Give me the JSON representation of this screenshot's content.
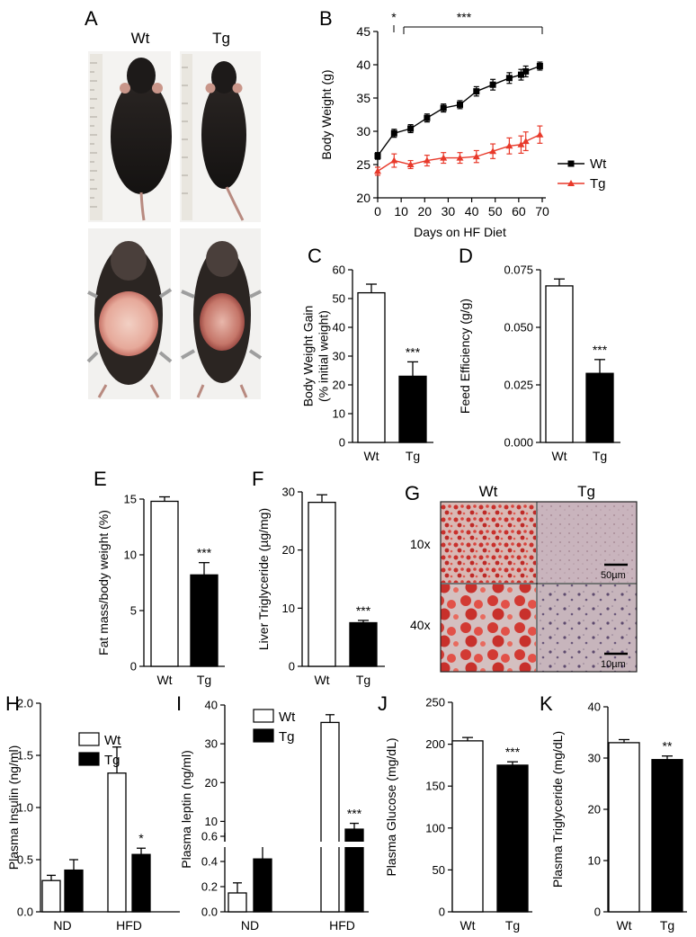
{
  "panel_letters": [
    "A",
    "B",
    "C",
    "D",
    "E",
    "F",
    "G",
    "H",
    "I",
    "J",
    "K"
  ],
  "panel_a": {
    "col_labels": [
      "Wt",
      "Tg"
    ]
  },
  "panel_g": {
    "col_labels": [
      "Wt",
      "Tg"
    ],
    "row_labels": [
      "10x",
      "40x"
    ],
    "scale_bars": [
      "50µm",
      "10µm"
    ]
  },
  "colors": {
    "wt": "#000000",
    "tg": "#e8392a",
    "bar_tg": "#000000",
    "bar_wt": "#ffffff"
  },
  "chart_data": [
    {
      "id": "B",
      "type": "line",
      "xlabel": "Days on HF Diet",
      "ylabel": "Body Weight (g)",
      "xlim": [
        0,
        70
      ],
      "ylim": [
        20,
        45
      ],
      "xticks": [
        0,
        10,
        20,
        30,
        40,
        50,
        60,
        70
      ],
      "yticks": [
        20,
        25,
        30,
        35,
        40,
        45
      ],
      "legend_position": "right",
      "series": [
        {
          "name": "Wt",
          "marker": "square",
          "color": "#000000",
          "x": [
            0,
            7,
            14,
            21,
            28,
            35,
            42,
            49,
            56,
            61,
            63,
            69
          ],
          "y": [
            26.3,
            29.7,
            30.4,
            32.0,
            33.5,
            34.0,
            36.0,
            37.0,
            38.0,
            38.5,
            39.0,
            39.8
          ],
          "err": [
            0.5,
            0.6,
            0.6,
            0.6,
            0.6,
            0.6,
            0.7,
            0.8,
            0.8,
            0.8,
            0.8,
            0.6
          ]
        },
        {
          "name": "Tg",
          "marker": "triangle",
          "color": "#e8392a",
          "x": [
            0,
            7,
            14,
            21,
            28,
            35,
            42,
            49,
            56,
            61,
            63,
            69
          ],
          "y": [
            24.0,
            25.6,
            25.0,
            25.6,
            26.0,
            26.0,
            26.2,
            27.0,
            27.8,
            28.0,
            28.5,
            29.5
          ],
          "err": [
            0.6,
            1.0,
            0.6,
            0.8,
            0.8,
            0.8,
            0.9,
            1.1,
            1.2,
            1.3,
            1.4,
            1.3
          ]
        }
      ],
      "annotations": [
        "*",
        "***"
      ]
    },
    {
      "id": "C",
      "type": "bar",
      "categories": [
        "Wt",
        "Tg"
      ],
      "values": [
        52,
        23
      ],
      "errors": [
        3,
        5
      ],
      "ylabel": [
        "Body Weight Gain",
        "(% initial weight)"
      ],
      "ylim": [
        0,
        60
      ],
      "yticks": [
        "0",
        "10",
        "20",
        "30",
        "40",
        "50",
        "60"
      ],
      "annotations": [
        "",
        "***"
      ]
    },
    {
      "id": "D",
      "type": "bar",
      "categories": [
        "Wt",
        "Tg"
      ],
      "values": [
        0.068,
        0.03
      ],
      "errors": [
        0.003,
        0.006
      ],
      "ylabel": [
        "Feed Efficiency (g/g)"
      ],
      "ylim": [
        0,
        0.075
      ],
      "yticks": [
        "0.000",
        "0.025",
        "0.050",
        "0.075"
      ],
      "annotations": [
        "",
        "***"
      ]
    },
    {
      "id": "E",
      "type": "bar",
      "categories": [
        "Wt",
        "Tg"
      ],
      "values": [
        14.8,
        8.2
      ],
      "errors": [
        0.4,
        1.1
      ],
      "ylabel": [
        "Fat mass/body weight (%)"
      ],
      "ylim": [
        0,
        15
      ],
      "yticks": [
        "0",
        "5",
        "10",
        "15"
      ],
      "annotations": [
        "",
        "***"
      ]
    },
    {
      "id": "F",
      "type": "bar",
      "categories": [
        "Wt",
        "Tg"
      ],
      "values": [
        28.2,
        7.5
      ],
      "errors": [
        1.3,
        0.4
      ],
      "ylabel": [
        "Liver Triglyceride (µg/mg)"
      ],
      "ylim": [
        0,
        30
      ],
      "yticks": [
        "0",
        "10",
        "20",
        "30"
      ],
      "annotations": [
        "",
        "***"
      ]
    },
    {
      "id": "H",
      "type": "bar",
      "categories": [
        "ND",
        "HFD"
      ],
      "series": [
        {
          "name": "Wt",
          "values": [
            0.3,
            1.33
          ],
          "errors": [
            0.05,
            0.25
          ]
        },
        {
          "name": "Tg",
          "values": [
            0.4,
            0.55
          ],
          "errors": [
            0.1,
            0.06
          ]
        }
      ],
      "ylabel": [
        "Plasma Insulin (ng/ml)"
      ],
      "ylim": [
        0,
        2.0
      ],
      "yticks": [
        "0.0",
        "0.5",
        "1.0",
        "1.5",
        "2.0"
      ],
      "legend_position": "top-left",
      "annotations": [
        "",
        "*"
      ]
    },
    {
      "id": "I",
      "type": "bar",
      "broken_axis": true,
      "categories": [
        "ND",
        "HFD"
      ],
      "series": [
        {
          "name": "Wt",
          "values": [
            0.15,
            35.5
          ],
          "errors": [
            0.08,
            2.0
          ]
        },
        {
          "name": "Tg",
          "values": [
            0.42,
            8.0
          ],
          "errors": [
            0.1,
            1.5
          ]
        }
      ],
      "ylabel": [
        "Plasma leptin (ng/ml)"
      ],
      "yticks_lower": [
        "0.0",
        "0.2",
        "0.4",
        "0.6"
      ],
      "yticks_upper": [
        "10",
        "20",
        "30",
        "40"
      ],
      "legend_position": "top-left",
      "annotations": [
        "",
        "***"
      ]
    },
    {
      "id": "J",
      "type": "bar",
      "categories": [
        "Wt",
        "Tg"
      ],
      "values": [
        204,
        175
      ],
      "errors": [
        4,
        4
      ],
      "ylabel": [
        "Plasma Glucose (mg/dL)"
      ],
      "ylim": [
        0,
        250
      ],
      "yticks": [
        "0",
        "50",
        "100",
        "150",
        "200",
        "250"
      ],
      "annotations": [
        "",
        "***"
      ]
    },
    {
      "id": "K",
      "type": "bar",
      "categories": [
        "Wt",
        "Tg"
      ],
      "values": [
        33.0,
        29.7
      ],
      "errors": [
        0.6,
        0.7
      ],
      "ylabel": [
        "Plasma Triglyceride (mg/dL)"
      ],
      "ylim": [
        0,
        40
      ],
      "yticks": [
        "0",
        "10",
        "20",
        "30",
        "40"
      ],
      "annotations": [
        "",
        "**"
      ]
    }
  ]
}
